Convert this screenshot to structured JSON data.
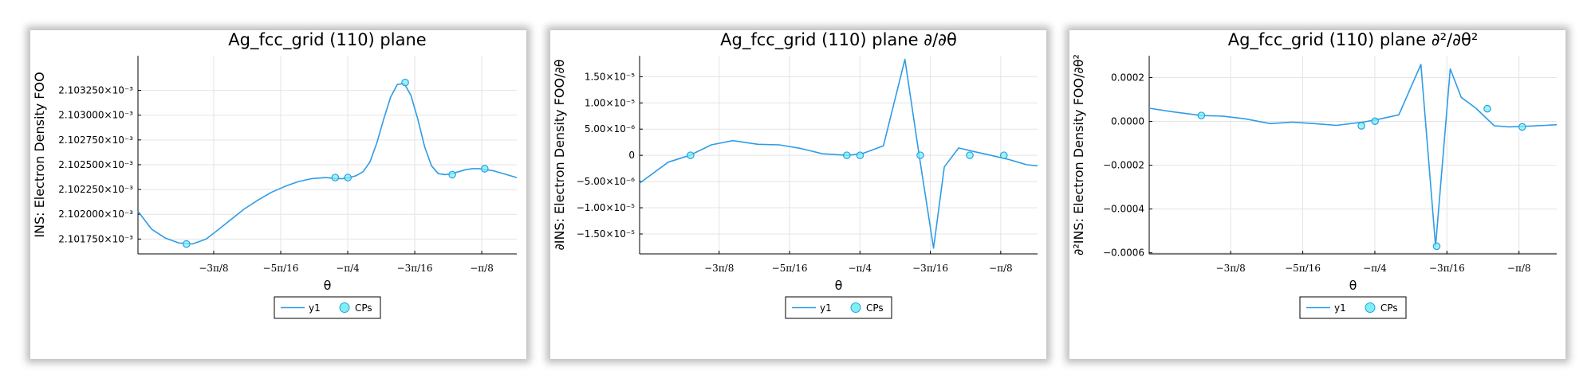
{
  "colors": {
    "line": "#2e9ce6",
    "marker": "#7ef0f0",
    "marker_edge": "#2e9ce6"
  },
  "chart_data": [
    {
      "type": "line",
      "title": "Ag_fcc_grid (110) plane",
      "xlabel": "θ",
      "ylabel": "INS: Electron Density FOO",
      "xlim": [
        -1.4,
        -0.29
      ],
      "ylim": [
        0.0021016,
        0.0021036
      ],
      "x_ticks": [
        {
          "value": -1.1781,
          "label": "−3π/8"
        },
        {
          "value": -0.9817,
          "label": "−5π/16"
        },
        {
          "value": -0.7854,
          "label": "−π/4"
        },
        {
          "value": -0.589,
          "label": "−3π/16"
        },
        {
          "value": -0.3927,
          "label": "−π/8"
        }
      ],
      "y_ticks": [
        {
          "value": 0.00210175,
          "label": "2.101750×10⁻³"
        },
        {
          "value": 0.002102,
          "label": "2.102000×10⁻³"
        },
        {
          "value": 0.00210225,
          "label": "2.102250×10⁻³"
        },
        {
          "value": 0.0021025,
          "label": "2.102500×10⁻³"
        },
        {
          "value": 0.00210275,
          "label": "2.102750×10⁻³"
        },
        {
          "value": 0.002103,
          "label": "2.103000×10⁻³"
        },
        {
          "value": 0.00210325,
          "label": "2.103250×10⁻³"
        }
      ],
      "grid": true,
      "legend": "bottom-center",
      "series": [
        {
          "name": "y1",
          "style": "line",
          "x": [
            -1.4,
            -1.36,
            -1.32,
            -1.28,
            -1.24,
            -1.2,
            -1.17,
            -1.13,
            -1.09,
            -1.05,
            -1.01,
            -0.97,
            -0.93,
            -0.89,
            -0.85,
            -0.82,
            -0.8,
            -0.78,
            -0.76,
            -0.74,
            -0.72,
            -0.7,
            -0.68,
            -0.66,
            -0.64,
            -0.62,
            -0.6,
            -0.58,
            -0.56,
            -0.54,
            -0.52,
            -0.5,
            -0.48,
            -0.46,
            -0.44,
            -0.42,
            -0.4,
            -0.38,
            -0.36,
            -0.34,
            -0.32,
            -0.29
          ],
          "y": [
            0.00210203,
            0.00210185,
            0.00210176,
            0.00210171,
            0.0021017,
            0.00210175,
            0.00210183,
            0.00210194,
            0.00210205,
            0.00210214,
            0.00210222,
            0.00210228,
            0.00210233,
            0.00210236,
            0.00210237,
            0.00210236,
            0.00210236,
            0.00210237,
            0.00210239,
            0.00210243,
            0.00210253,
            0.00210272,
            0.00210296,
            0.00210318,
            0.00210331,
            0.00210332,
            0.0021032,
            0.00210296,
            0.00210268,
            0.00210249,
            0.00210241,
            0.0021024,
            0.00210241,
            0.00210243,
            0.00210245,
            0.00210246,
            0.00210246,
            0.00210245,
            0.00210244,
            0.00210242,
            0.0021024,
            0.00210237
          ]
        },
        {
          "name": "CPs",
          "style": "scatter",
          "x": [
            -1.258,
            -0.822,
            -0.785,
            -0.617,
            -0.479,
            -0.384
          ],
          "y": [
            0.0021017,
            0.00210237,
            0.00210237,
            0.00210333,
            0.0021024,
            0.00210246
          ]
        }
      ]
    },
    {
      "type": "line",
      "title": "Ag_fcc_grid (110) plane ∂/∂θ",
      "xlabel": "θ",
      "ylabel": "∂INS: Electron Density FOO/∂θ",
      "xlim": [
        -1.4,
        -0.29
      ],
      "ylim": [
        -1.88e-05,
        1.9e-05
      ],
      "x_ticks": [
        {
          "value": -1.1781,
          "label": "−3π/8"
        },
        {
          "value": -0.9817,
          "label": "−5π/16"
        },
        {
          "value": -0.7854,
          "label": "−π/4"
        },
        {
          "value": -0.589,
          "label": "−3π/16"
        },
        {
          "value": -0.3927,
          "label": "−π/8"
        }
      ],
      "y_ticks": [
        {
          "value": 1.5e-05,
          "label": "1.50×10⁻⁵"
        },
        {
          "value": 1e-05,
          "label": "1.00×10⁻⁵"
        },
        {
          "value": 5e-06,
          "label": "5.00×10⁻⁶"
        },
        {
          "value": 0,
          "label": "0"
        },
        {
          "value": -5e-06,
          "label": "−5.00×10⁻⁶"
        },
        {
          "value": -1e-05,
          "label": "−1.00×10⁻⁵"
        },
        {
          "value": -1.5e-05,
          "label": "−1.50×10⁻⁵"
        }
      ],
      "grid": true,
      "legend": "bottom-center",
      "series": [
        {
          "name": "y1",
          "style": "line",
          "x": [
            -1.4,
            -1.32,
            -1.26,
            -1.2,
            -1.14,
            -1.07,
            -1.01,
            -0.95,
            -0.89,
            -0.82,
            -0.78,
            -0.72,
            -0.66,
            -0.62,
            -0.58,
            -0.55,
            -0.51,
            -0.46,
            -0.42,
            -0.37,
            -0.32,
            -0.29
          ],
          "y": [
            -5.3e-06,
            -1.3e-06,
            0.0,
            2e-06,
            2.8e-06,
            2.1e-06,
            2e-06,
            1.3e-06,
            3e-07,
            0.0,
            3e-07,
            1.8e-06,
            1.83e-05,
            0.0,
            -1.77e-05,
            -2.2e-06,
            1.4e-06,
            6e-07,
            0.0,
            -8e-07,
            -1.8e-06,
            -2e-06
          ]
        },
        {
          "name": "CPs",
          "style": "scatter",
          "x": [
            -1.258,
            -0.822,
            -0.785,
            -0.617,
            -0.479,
            -0.384
          ],
          "y": [
            0,
            0,
            0,
            0,
            0,
            0
          ]
        }
      ]
    },
    {
      "type": "line",
      "title": "Ag_fcc_grid (110) plane ∂²/∂θ²",
      "xlabel": "θ",
      "ylabel": "∂²INS: Electron Density FOO/∂θ²",
      "xlim": [
        -1.4,
        -0.29
      ],
      "ylim": [
        -0.000605,
        0.0003
      ],
      "x_ticks": [
        {
          "value": -1.1781,
          "label": "−3π/8"
        },
        {
          "value": -0.9817,
          "label": "−5π/16"
        },
        {
          "value": -0.7854,
          "label": "−π/4"
        },
        {
          "value": -0.589,
          "label": "−3π/16"
        },
        {
          "value": -0.3927,
          "label": "−π/8"
        }
      ],
      "y_ticks": [
        {
          "value": 0.0002,
          "label": "0.0002"
        },
        {
          "value": 0.0,
          "label": "0.0000"
        },
        {
          "value": -0.0002,
          "label": "−0.0002"
        },
        {
          "value": -0.0004,
          "label": "−0.0004"
        },
        {
          "value": -0.0006,
          "label": "−0.0006"
        }
      ],
      "grid": true,
      "legend": "bottom-center",
      "series": [
        {
          "name": "y1",
          "style": "line",
          "x": [
            -1.4,
            -1.34,
            -1.26,
            -1.2,
            -1.14,
            -1.07,
            -1.01,
            -0.95,
            -0.89,
            -0.82,
            -0.78,
            -0.72,
            -0.66,
            -0.62,
            -0.58,
            -0.55,
            -0.51,
            -0.46,
            -0.42,
            -0.37,
            -0.32,
            -0.29
          ],
          "y": [
            6e-05,
            4.5e-05,
            2.7e-05,
            2.4e-05,
            1.2e-05,
            -1e-05,
            -3e-06,
            -1e-05,
            -1.8e-05,
            -4e-06,
            8e-06,
            3e-05,
            0.00026,
            -0.00057,
            0.00024,
            0.00011,
            6e-05,
            -2e-05,
            -2.5e-05,
            -2.2e-05,
            -1.8e-05,
            -1.5e-05
          ]
        },
        {
          "name": "CPs",
          "style": "scatter",
          "x": [
            -1.258,
            -0.822,
            -0.785,
            -0.617,
            -0.479,
            -0.384
          ],
          "y": [
            2.7e-05,
            -2e-05,
            1e-06,
            -0.00057,
            5.8e-05,
            -2.5e-05
          ]
        }
      ]
    }
  ]
}
